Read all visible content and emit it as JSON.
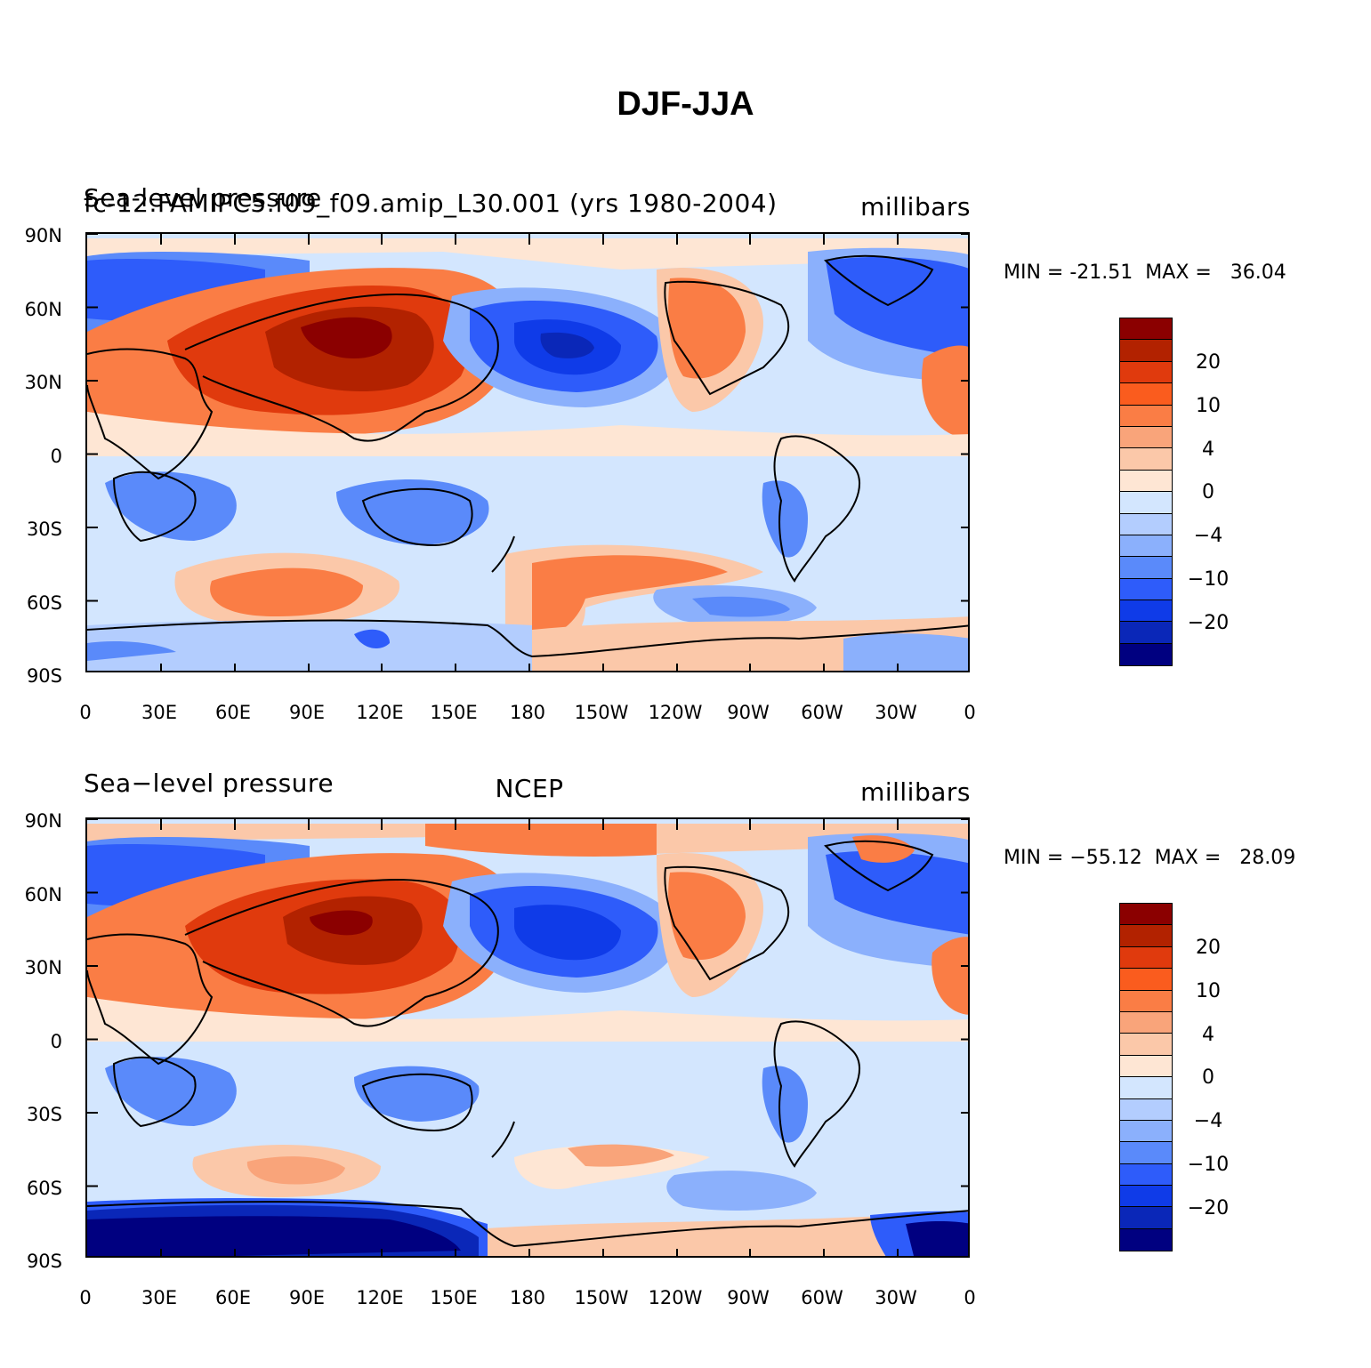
{
  "title": "DJF-JJA",
  "panels": [
    {
      "left_label": "Sea-level pressure",
      "center_label": "fc-12.FAMIPC5.f09_f09.amip_L30.001 (yrs 1980-2004)",
      "right_label": "millibars",
      "min_label": "MIN = -21.51",
      "max_label": "MAX =   36.04"
    },
    {
      "left_label": "Sea−level pressure",
      "center_label": "NCEP",
      "right_label": "millibars",
      "min_label": "MIN = −55.12",
      "max_label": "MAX =   28.09"
    }
  ],
  "y_ticks": [
    "90N",
    "60N",
    "30N",
    "0",
    "30S",
    "60S",
    "90S"
  ],
  "x_ticks": [
    "0",
    "30E",
    "60E",
    "90E",
    "120E",
    "150E",
    "180",
    "150W",
    "120W",
    "90W",
    "60W",
    "30W",
    "0"
  ],
  "colorbar": {
    "colors": [
      "#8b0000",
      "#b22200",
      "#e03a0d",
      "#fa5c1e",
      "#fa7d45",
      "#f9a47a",
      "#fbc8a9",
      "#fee6d4",
      "#d3e6fe",
      "#b3cdfe",
      "#8bb0fc",
      "#5a8afa",
      "#2e5cfa",
      "#0f3be8",
      "#0a27b8",
      "#000080"
    ],
    "labels": [
      "20",
      "10",
      "4",
      "0",
      "−4",
      "−10",
      "−20"
    ]
  }
}
